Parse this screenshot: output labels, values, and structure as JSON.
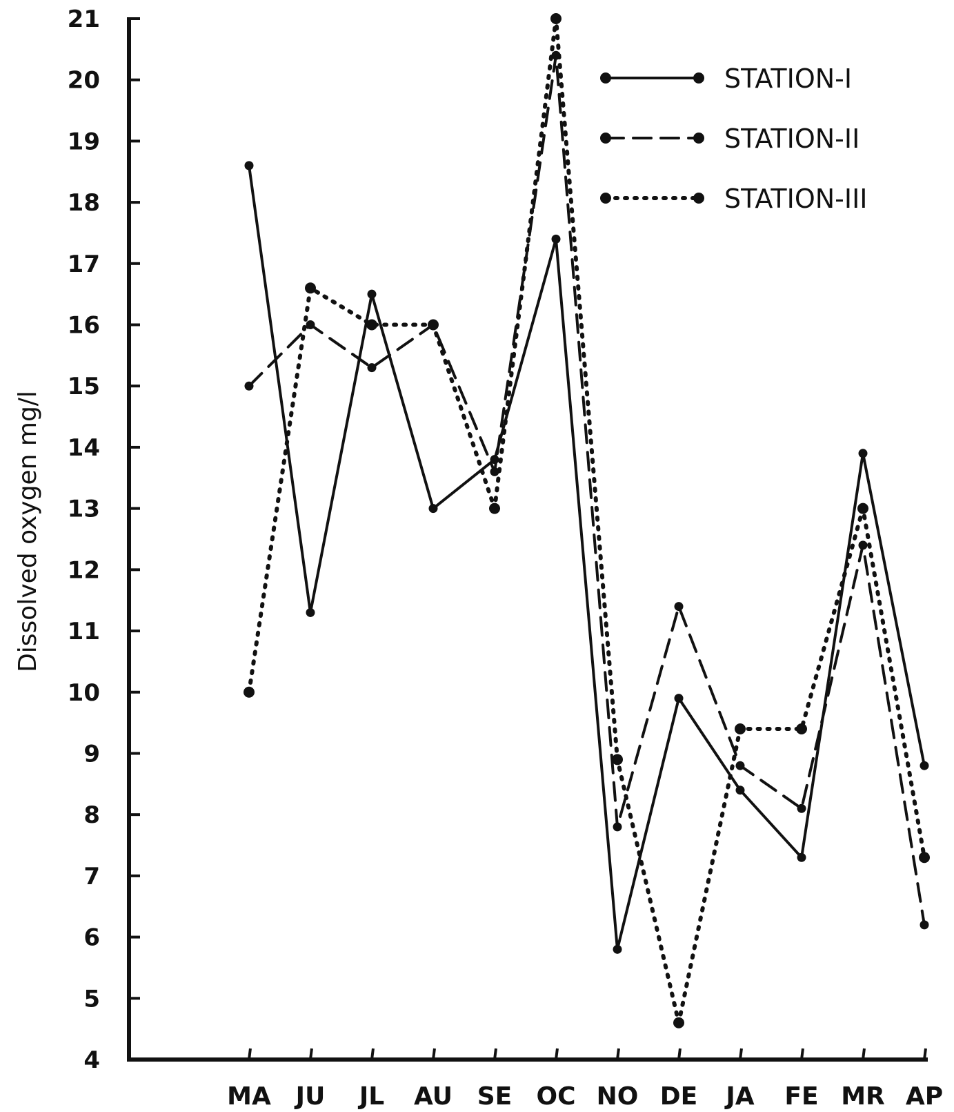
{
  "chart_data": {
    "type": "line",
    "title": "",
    "xlabel": "",
    "ylabel": "Dissolved oxygen  mg/l",
    "categories": [
      "MA",
      "JU",
      "JL",
      "AU",
      "SE",
      "OC",
      "NO",
      "DE",
      "JA",
      "FE",
      "MR",
      "AP"
    ],
    "yticks": [
      "4",
      "5",
      "6",
      "7",
      "8",
      "9",
      "10",
      "11",
      "12",
      "13",
      "14",
      "15",
      "16",
      "17",
      "18",
      "19",
      "20",
      "21"
    ],
    "ylim": [
      4,
      21
    ],
    "grid": false,
    "legend_position": "top-right",
    "series": [
      {
        "name": "STATION-I",
        "style": "solid",
        "values": [
          18.6,
          11.3,
          16.5,
          13.0,
          13.8,
          17.4,
          5.8,
          9.9,
          8.4,
          7.3,
          13.9,
          8.8
        ]
      },
      {
        "name": "STATION-II",
        "style": "dashed",
        "values": [
          15.0,
          16.0,
          15.3,
          16.0,
          13.6,
          20.4,
          7.8,
          11.4,
          8.8,
          8.1,
          12.4,
          6.2
        ]
      },
      {
        "name": "STATION-III",
        "style": "dotted",
        "values": [
          10.0,
          16.6,
          16.0,
          16.0,
          13.0,
          21.0,
          8.9,
          4.6,
          9.4,
          9.4,
          13.0,
          7.3
        ]
      }
    ]
  },
  "colors": {
    "ink": "#111111",
    "background": "#ffffff"
  }
}
